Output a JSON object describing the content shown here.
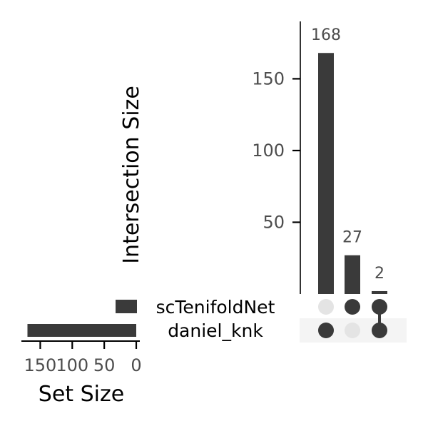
{
  "chart_data": {
    "type": "upset",
    "intersection_size": {
      "ylabel": "Intersection Size",
      "yticks": [
        50,
        100,
        150
      ],
      "ylim": [
        0,
        190
      ],
      "bars": [
        {
          "sets": [
            "daniel_knk"
          ],
          "value": 168,
          "label": "168"
        },
        {
          "sets": [
            "scTenifoldNet"
          ],
          "value": 27,
          "label": "27"
        },
        {
          "sets": [
            "scTenifoldNet",
            "daniel_knk"
          ],
          "value": 2,
          "label": "2"
        }
      ]
    },
    "set_size": {
      "xlabel": "Set Size",
      "xticks": [
        150,
        100,
        50,
        0
      ],
      "xlim": [
        0,
        175
      ],
      "sets": [
        {
          "name": "scTenifoldNet",
          "value": 29
        },
        {
          "name": "daniel_knk",
          "value": 170
        }
      ]
    },
    "colors": {
      "bar": "#3a3a3a",
      "dot_active": "#3a3a3a",
      "dot_inactive": "#e4e4e4",
      "stripe": "#f4f4f4",
      "text": "#4d4d4d",
      "axis": "#000000"
    }
  }
}
